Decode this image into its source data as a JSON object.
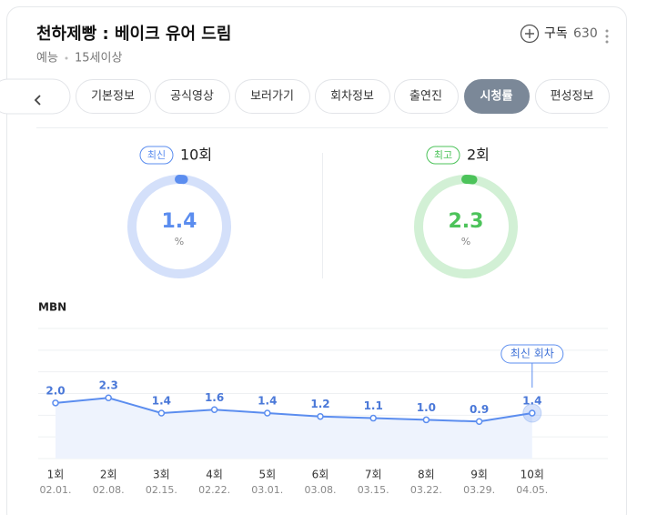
{
  "header": {
    "title": "천하제빵 : 베이크 유어 드림",
    "genre": "예능",
    "rating": "15세이상",
    "subscribe_label": "구독",
    "subscribe_count": 630
  },
  "tabs": [
    {
      "label": "기본정보",
      "active": false
    },
    {
      "label": "공식영상",
      "active": false
    },
    {
      "label": "보러가기",
      "active": false
    },
    {
      "label": "회차정보",
      "active": false
    },
    {
      "label": "출연진",
      "active": false
    },
    {
      "label": "시청률",
      "active": true
    },
    {
      "label": "편성정보",
      "active": false
    }
  ],
  "summary": [
    {
      "badge": "최신",
      "episode": "10회",
      "value": 1.4,
      "unit": "%",
      "range": [
        0,
        100
      ],
      "color": "#5b8def",
      "track_color": "#d4e0fa"
    },
    {
      "badge": "최고",
      "episode": "2회",
      "value": 2.3,
      "unit": "%",
      "range": [
        0,
        100
      ],
      "color": "#4cc35a",
      "track_color": "#d2f0d5"
    }
  ],
  "chart_data": {
    "type": "line",
    "title": "MBN",
    "categories": [
      "1회",
      "2회",
      "3회",
      "4회",
      "5회",
      "6회",
      "7회",
      "8회",
      "9회",
      "10회"
    ],
    "dates": [
      "02.01.",
      "02.08.",
      "02.15.",
      "02.22.",
      "03.01.",
      "03.08.",
      "03.15.",
      "03.22.",
      "03.29.",
      "04.05."
    ],
    "series": [
      {
        "color": "#5b8def",
        "values": [
          2.0,
          2.3,
          1.4,
          1.6,
          1.4,
          1.2,
          1.1,
          1.0,
          0.9,
          1.4
        ],
        "value_labels": [
          "2.0",
          "2.3",
          "1.4",
          "1.6",
          "1.4",
          "1.2",
          "1.1",
          "1.0",
          "0.9",
          "1.4"
        ]
      }
    ],
    "ylim": [
      -1.29,
      6.4
    ],
    "grid": true,
    "annotation": "최신 회차"
  }
}
